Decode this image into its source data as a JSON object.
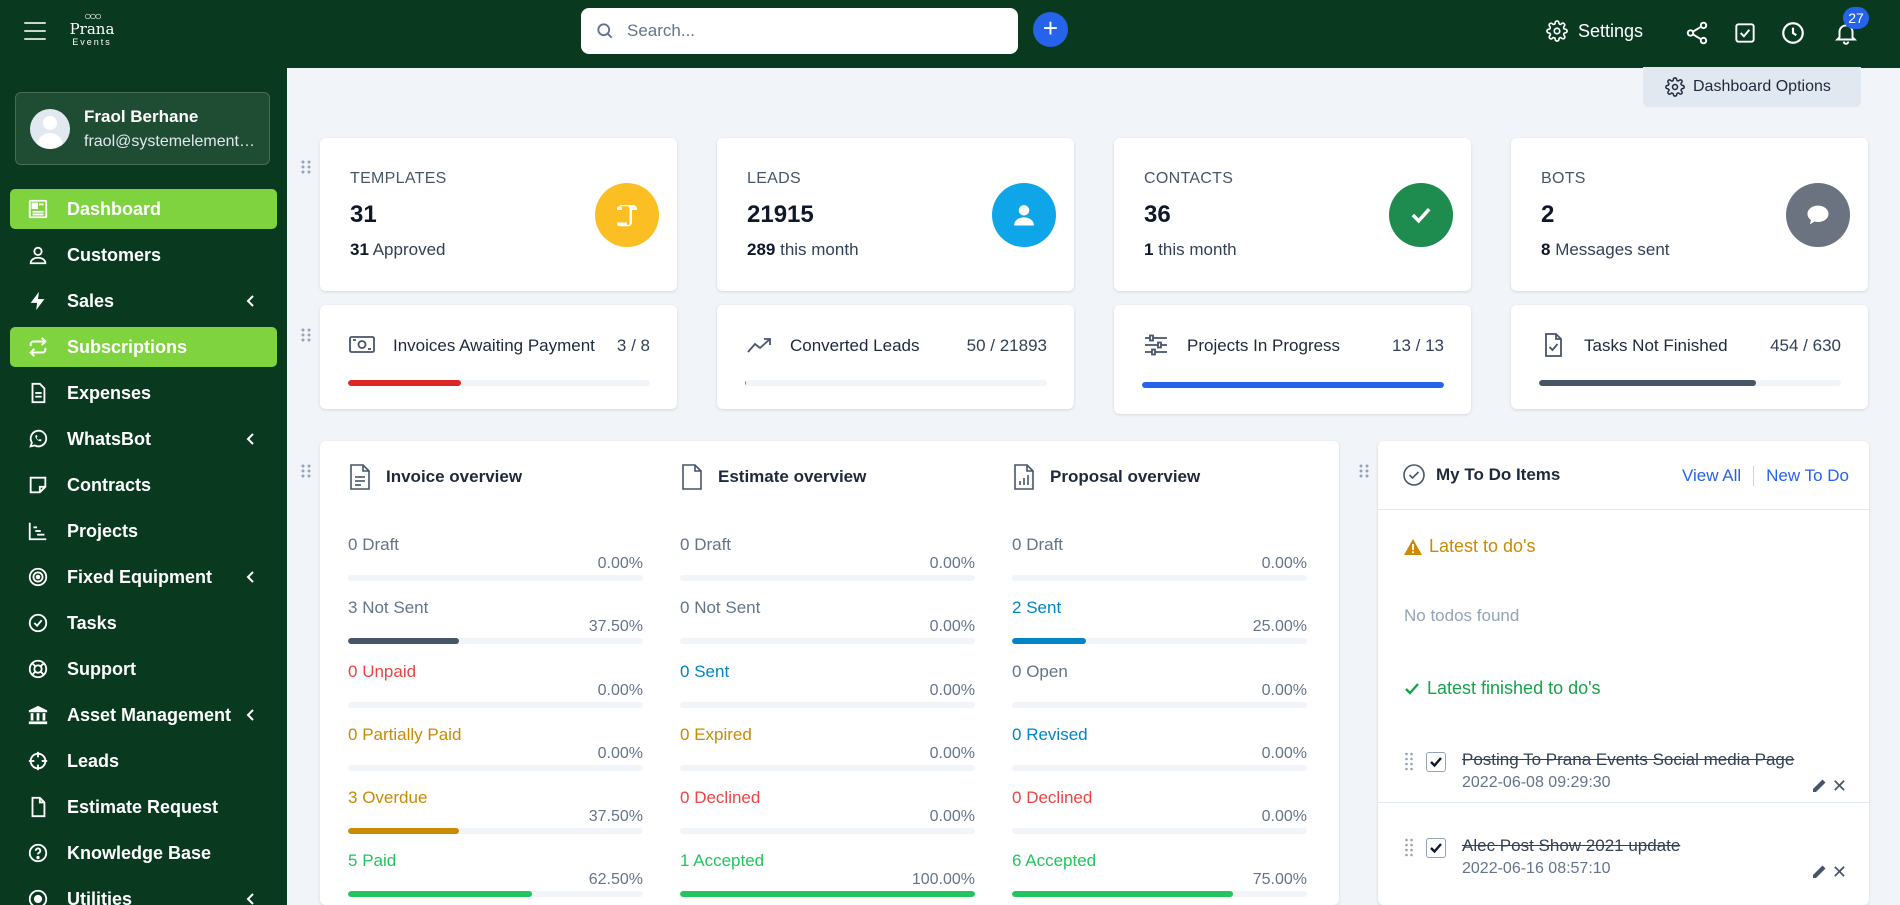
{
  "brand": {
    "name": "Prana",
    "sub": "Events"
  },
  "search": {
    "placeholder": "Search..."
  },
  "topbar": {
    "settings_label": "Settings",
    "notification_count": "27"
  },
  "user": {
    "name": "Fraol Berhane",
    "email": "fraol@systemelements.com"
  },
  "sidebar": {
    "items": [
      {
        "label": "Dashboard",
        "icon": "dashboard-icon",
        "active": true
      },
      {
        "label": "Customers",
        "icon": "user-icon"
      },
      {
        "label": "Sales",
        "icon": "bolt-icon",
        "has_submenu": true
      },
      {
        "label": "Subscriptions",
        "icon": "repeat-icon",
        "active": true
      },
      {
        "label": "Expenses",
        "icon": "file-text-icon"
      },
      {
        "label": "WhatsBot",
        "icon": "whatsapp-icon",
        "has_submenu": true
      },
      {
        "label": "Contracts",
        "icon": "sticky-note-icon"
      },
      {
        "label": "Projects",
        "icon": "chart-gantt-icon"
      },
      {
        "label": "Fixed Equipment",
        "icon": "target-icon",
        "has_submenu": true
      },
      {
        "label": "Tasks",
        "icon": "check-circle-icon"
      },
      {
        "label": "Support",
        "icon": "lifebuoy-icon"
      },
      {
        "label": "Asset Management",
        "icon": "bank-icon",
        "has_submenu": true
      },
      {
        "label": "Leads",
        "icon": "crosshair-icon"
      },
      {
        "label": "Estimate Request",
        "icon": "file-icon"
      },
      {
        "label": "Knowledge Base",
        "icon": "question-circle-icon"
      },
      {
        "label": "Utilities",
        "icon": "dot-circle-icon",
        "has_submenu": true
      }
    ]
  },
  "dashboard_options": {
    "label": "Dashboard Options"
  },
  "stats": [
    {
      "label": "TEMPLATES",
      "value": "31",
      "sub_bold": "31",
      "sub_text": " Approved",
      "color": "#fbbf24",
      "icon": "scroll-icon"
    },
    {
      "label": "LEADS",
      "value": "21915",
      "sub_bold": "289",
      "sub_text": " this month",
      "color": "#0ea5e9",
      "icon": "user-icon"
    },
    {
      "label": "CONTACTS",
      "value": "36",
      "sub_bold": "1",
      "sub_text": " this month",
      "color": "#1e8c4e",
      "icon": "check-icon"
    },
    {
      "label": "BOTS",
      "value": "2",
      "sub_bold": "8",
      "sub_text": " Messages sent",
      "color": "#6b7280",
      "icon": "chat-icon"
    }
  ],
  "progress": [
    {
      "label": "Invoices Awaiting Payment",
      "value": "3 / 8",
      "fraction": 0.375,
      "color": "#dc2626",
      "icon": "money-icon"
    },
    {
      "label": "Converted Leads",
      "value": "50 / 21893",
      "fraction": 0.002,
      "color": "#0ea5e9",
      "icon": "trend-up-icon"
    },
    {
      "label": "Projects In Progress",
      "value": "13 / 13",
      "fraction": 1.0,
      "color": "#2563eb",
      "icon": "sliders-icon"
    },
    {
      "label": "Tasks Not Finished",
      "value": "454 / 630",
      "fraction": 0.72,
      "color": "#475569",
      "icon": "file-check-icon"
    }
  ],
  "overview": [
    {
      "title": "Invoice overview",
      "icon": "invoice-icon",
      "rows": [
        {
          "count": "0",
          "label": " Draft",
          "pct": "0.00%",
          "fraction": 0,
          "color": "#64748b",
          "bar": "#64748b"
        },
        {
          "count": "3",
          "label": " Not Sent",
          "pct": "37.50%",
          "fraction": 0.375,
          "color": "#64748b",
          "bar": "#475569"
        },
        {
          "count": "0",
          "label": " Unpaid",
          "pct": "0.00%",
          "fraction": 0,
          "color": "#ef4444",
          "bar": "#ef4444"
        },
        {
          "count": "0",
          "label": " Partially Paid",
          "pct": "0.00%",
          "fraction": 0,
          "color": "#ca8a04",
          "bar": "#ca8a04"
        },
        {
          "count": "3",
          "label": " Overdue",
          "pct": "37.50%",
          "fraction": 0.375,
          "color": "#ca8a04",
          "bar": "#ca8a04"
        },
        {
          "count": "5",
          "label": " Paid",
          "pct": "62.50%",
          "fraction": 0.625,
          "color": "#22c55e",
          "bar": "#22c55e"
        }
      ]
    },
    {
      "title": "Estimate overview",
      "icon": "estimate-icon",
      "rows": [
        {
          "count": "0",
          "label": " Draft",
          "pct": "0.00%",
          "fraction": 0,
          "color": "#64748b",
          "bar": "#64748b"
        },
        {
          "count": "0",
          "label": " Not Sent",
          "pct": "0.00%",
          "fraction": 0,
          "color": "#64748b",
          "bar": "#64748b"
        },
        {
          "count": "0",
          "label": " Sent",
          "pct": "0.00%",
          "fraction": 0,
          "color": "#0284c7",
          "bar": "#0284c7"
        },
        {
          "count": "0",
          "label": " Expired",
          "pct": "0.00%",
          "fraction": 0,
          "color": "#ca8a04",
          "bar": "#ca8a04"
        },
        {
          "count": "0",
          "label": " Declined",
          "pct": "0.00%",
          "fraction": 0,
          "color": "#ef4444",
          "bar": "#ef4444"
        },
        {
          "count": "1",
          "label": " Accepted",
          "pct": "100.00%",
          "fraction": 1.0,
          "color": "#22c55e",
          "bar": "#22c55e"
        }
      ]
    },
    {
      "title": "Proposal overview",
      "icon": "proposal-icon",
      "rows": [
        {
          "count": "0",
          "label": " Draft",
          "pct": "0.00%",
          "fraction": 0,
          "color": "#64748b",
          "bar": "#64748b"
        },
        {
          "count": "2",
          "label": " Sent",
          "pct": "25.00%",
          "fraction": 0.25,
          "color": "#0284c7",
          "bar": "#0284c7"
        },
        {
          "count": "0",
          "label": " Open",
          "pct": "0.00%",
          "fraction": 0,
          "color": "#64748b",
          "bar": "#64748b"
        },
        {
          "count": "0",
          "label": " Revised",
          "pct": "0.00%",
          "fraction": 0,
          "color": "#0284c7",
          "bar": "#0284c7"
        },
        {
          "count": "0",
          "label": " Declined",
          "pct": "0.00%",
          "fraction": 0,
          "color": "#ef4444",
          "bar": "#ef4444"
        },
        {
          "count": "6",
          "label": " Accepted",
          "pct": "75.00%",
          "fraction": 0.75,
          "color": "#22c55e",
          "bar": "#22c55e"
        }
      ]
    }
  ],
  "todo": {
    "title": "My To Do Items",
    "view_all": "View All",
    "new_todo": "New To Do",
    "latest_label": "Latest to do's",
    "empty_text": "No todos found",
    "finished_label": "Latest finished to do's",
    "finished": [
      {
        "text": "Posting To Prana Events Social media Page",
        "date": "2022-06-08 09:29:30"
      },
      {
        "text": "Alec Post Show 2021 update",
        "date": "2022-06-16 08:57:10"
      }
    ]
  }
}
